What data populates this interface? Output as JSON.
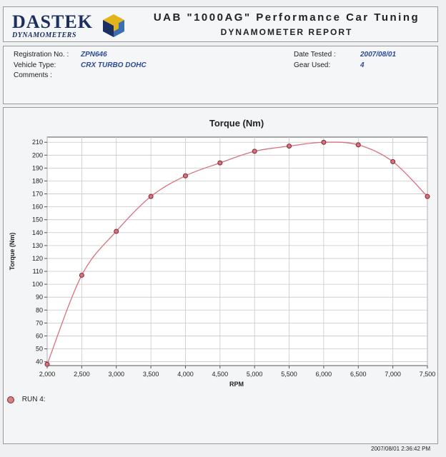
{
  "header": {
    "logo_main": "DASTEK",
    "logo_sub": "DYNAMOMETERS",
    "title": "UAB \"1000AG\" Performance Car Tuning",
    "subtitle": "DYNAMOMETER REPORT"
  },
  "info": {
    "registration_label": "Registration No. :",
    "registration_value": "ZPN646",
    "vehicle_label": "Vehicle Type:",
    "vehicle_value": "CRX TURBO DOHC",
    "comments_label": "Comments :",
    "date_label": "Date Tested :",
    "date_value": "2007/08/01",
    "gear_label": "Gear Used:",
    "gear_value": "4"
  },
  "legend": {
    "label": "RUN 4:"
  },
  "timestamp": "2007/08/01 2:36:42 PM",
  "colors": {
    "series": "#d9707d",
    "marker_edge": "#7a2b33",
    "grid": "#c8c8c8",
    "logo": "#1c2f62"
  },
  "chart_data": {
    "type": "line",
    "title": "Torque (Nm)",
    "xlabel": "RPM",
    "ylabel": "Torque (Nm)",
    "xlim": [
      2000,
      7500
    ],
    "ylim": [
      37,
      214
    ],
    "x_ticks": [
      2000,
      2500,
      3000,
      3500,
      4000,
      4500,
      5000,
      5500,
      6000,
      6500,
      7000,
      7500
    ],
    "x_tick_labels": [
      "2,000",
      "2,500",
      "3,000",
      "3,500",
      "4,000",
      "4,500",
      "5,000",
      "5,500",
      "6,000",
      "6,500",
      "7,000",
      "7,500"
    ],
    "y_ticks": [
      40,
      50,
      60,
      70,
      80,
      90,
      100,
      110,
      120,
      130,
      140,
      150,
      160,
      170,
      180,
      190,
      200,
      210
    ],
    "grid": true,
    "legend_position": "bottom-left",
    "series": [
      {
        "name": "RUN 4:",
        "x": [
          2000,
          2500,
          3000,
          3500,
          4000,
          4500,
          5000,
          5500,
          6000,
          6500,
          7000,
          7500
        ],
        "values": [
          38,
          107,
          141,
          168,
          184,
          194,
          203,
          207,
          210,
          208,
          195,
          168
        ]
      }
    ]
  }
}
